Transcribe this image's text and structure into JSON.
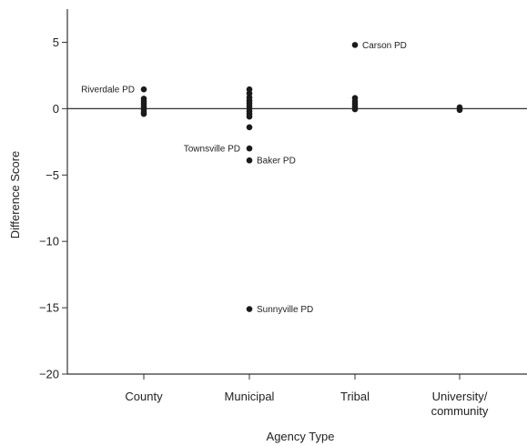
{
  "chart_data": {
    "type": "scatter",
    "title": "",
    "xlabel": "Agency Type",
    "ylabel": "Difference Score",
    "categories": [
      {
        "label": "County",
        "lines": [
          "County"
        ]
      },
      {
        "label": "Municipal",
        "lines": [
          "Municipal"
        ]
      },
      {
        "label": "Tribal",
        "lines": [
          "Tribal"
        ]
      },
      {
        "label": "University/community",
        "lines": [
          "University/",
          "community"
        ]
      }
    ],
    "ylim": [
      -20,
      7.5
    ],
    "yticks": [
      5,
      0,
      -5,
      -10,
      -15,
      -20
    ],
    "ytick_labels": [
      "5",
      "0",
      "−5",
      "−10",
      "−15",
      "−20"
    ],
    "grid": false,
    "reference_line": 0,
    "point_color": "#1a1a1a",
    "points": [
      {
        "cat": 0,
        "y": 1.45
      },
      {
        "cat": 0,
        "y": 0.75
      },
      {
        "cat": 0,
        "y": 0.55
      },
      {
        "cat": 0,
        "y": 0.35
      },
      {
        "cat": 0,
        "y": 0.15
      },
      {
        "cat": 0,
        "y": -0.05
      },
      {
        "cat": 0,
        "y": -0.25
      },
      {
        "cat": 0,
        "y": -0.4
      },
      {
        "cat": 1,
        "y": 1.45
      },
      {
        "cat": 1,
        "y": 1.15
      },
      {
        "cat": 1,
        "y": 0.85
      },
      {
        "cat": 1,
        "y": 0.6
      },
      {
        "cat": 1,
        "y": 0.4
      },
      {
        "cat": 1,
        "y": 0.2
      },
      {
        "cat": 1,
        "y": 0.0
      },
      {
        "cat": 1,
        "y": -0.2
      },
      {
        "cat": 1,
        "y": -0.4
      },
      {
        "cat": 1,
        "y": -0.6
      },
      {
        "cat": 1,
        "y": -1.4
      },
      {
        "cat": 1,
        "y": -3.0
      },
      {
        "cat": 1,
        "y": -3.9
      },
      {
        "cat": 1,
        "y": -15.1
      },
      {
        "cat": 2,
        "y": 4.8
      },
      {
        "cat": 2,
        "y": 0.8
      },
      {
        "cat": 2,
        "y": 0.55
      },
      {
        "cat": 2,
        "y": 0.35
      },
      {
        "cat": 2,
        "y": 0.15
      },
      {
        "cat": 2,
        "y": -0.05
      },
      {
        "cat": 3,
        "y": 0.1
      },
      {
        "cat": 3,
        "y": -0.1
      }
    ],
    "annotations": [
      {
        "text": "Riverdale PD",
        "cat": 0,
        "y": 1.45,
        "side": "left"
      },
      {
        "text": "Carson PD",
        "cat": 2,
        "y": 4.8,
        "side": "right"
      },
      {
        "text": "Townsville PD",
        "cat": 1,
        "y": -3.0,
        "side": "left"
      },
      {
        "text": "Baker PD",
        "cat": 1,
        "y": -3.9,
        "side": "right"
      },
      {
        "text": "Sunnyville PD",
        "cat": 1,
        "y": -15.1,
        "side": "right"
      }
    ]
  }
}
